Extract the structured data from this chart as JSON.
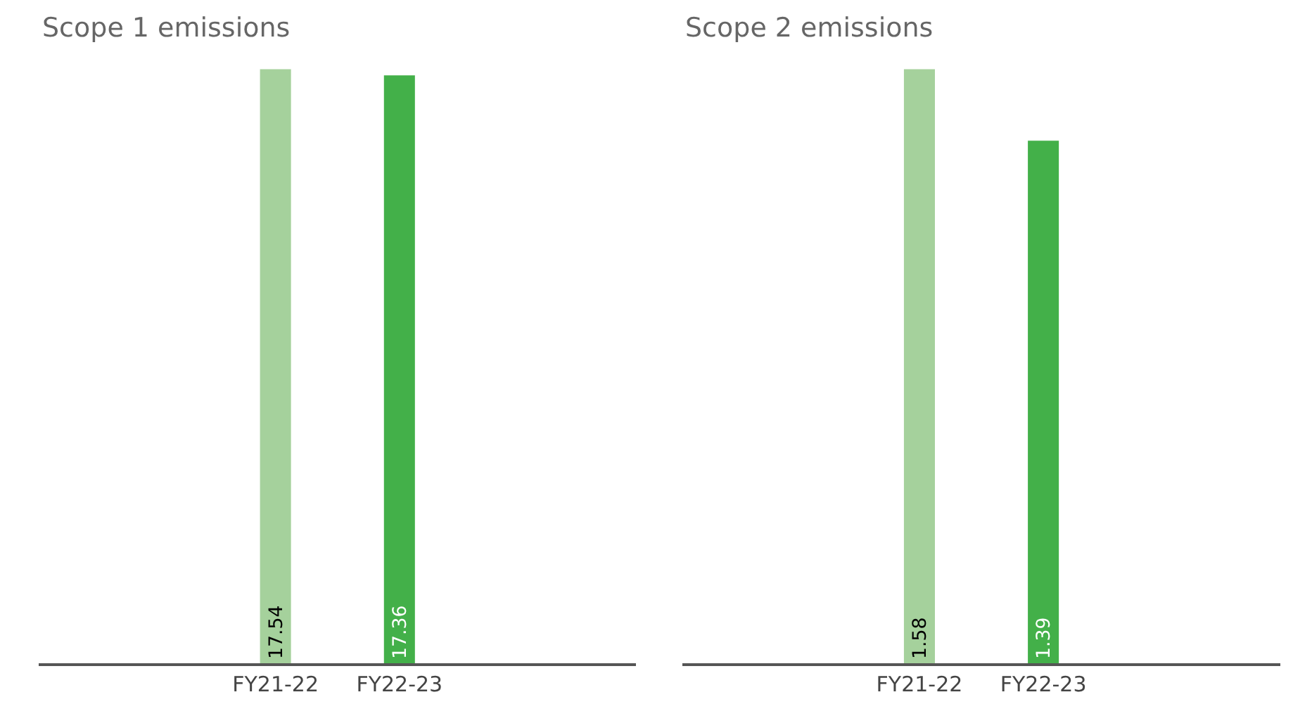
{
  "chart_data": [
    {
      "type": "bar",
      "title": "Scope 1 emissions",
      "data_labels": true,
      "legend": false,
      "categories": [
        "FY21-22",
        "FY22-23"
      ],
      "values": [
        17.54,
        17.36
      ],
      "colors": [
        "#a5d19c",
        "#43b049"
      ]
    },
    {
      "type": "bar",
      "title": "Scope 2 emissions",
      "data_labels": true,
      "legend": false,
      "categories": [
        "FY21-22",
        "FY22-23"
      ],
      "values": [
        1.58,
        1.39
      ],
      "colors": [
        "#a5d19c",
        "#43b049"
      ]
    }
  ]
}
